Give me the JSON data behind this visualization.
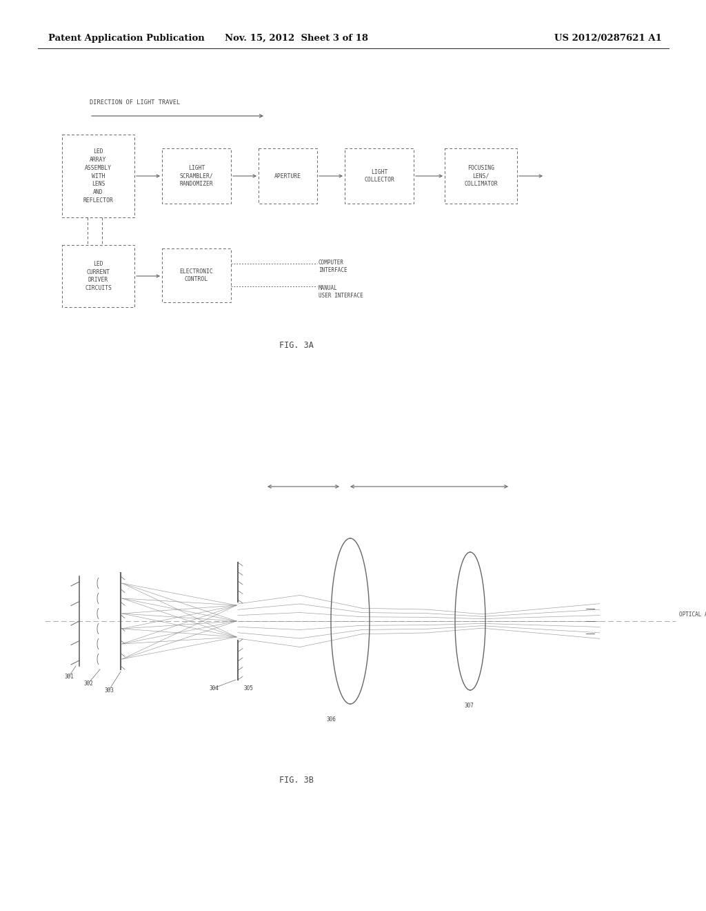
{
  "header_left": "Patent Application Publication",
  "header_mid": "Nov. 15, 2012  Sheet 3 of 18",
  "header_right": "US 2012/0287621 A1",
  "bg_color": "#ffffff",
  "text_color": "#444444",
  "line_color": "#666666",
  "fig3a_label": "FIG. 3A",
  "fig3b_label": "FIG. 3B",
  "direction_label": "DIRECTION OF LIGHT TRAVEL",
  "optical_axis_label": "OPTICAL AXIS",
  "computer_interface_label": "COMPUTER\nINTERFACE",
  "manual_interface_label": "MANUAL\nUSER INTERFACE"
}
